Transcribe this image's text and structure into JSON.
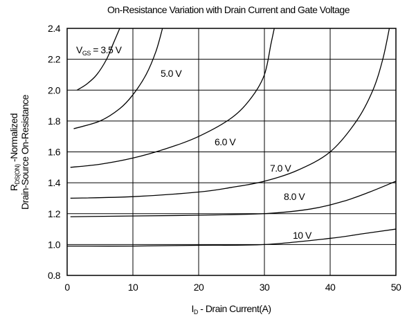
{
  "chart_data": {
    "type": "line",
    "title": "On-Resistance Variation with Drain Current and Gate Voltage",
    "xlabel": {
      "main": "I",
      "sub": "D",
      "rest": " - Drain Current(A)"
    },
    "ylabel": {
      "main": "R",
      "sub": "DS(ON)",
      "rest": " -Normalized",
      "line2": "Drain-Source On-Resistance"
    },
    "legend_prefix": {
      "main": "V",
      "sub": "GS",
      "rest": " = "
    },
    "xlim": [
      0,
      50
    ],
    "xticks": [
      0,
      10,
      20,
      30,
      40,
      50
    ],
    "ylim": [
      0.8,
      2.4
    ],
    "yticks": [
      0.8,
      {
        "value": 1,
        "label": "1.0"
      },
      1.2,
      1.4,
      1.6,
      1.8,
      {
        "value": 2,
        "label": "2.0"
      },
      2.2,
      2.4
    ],
    "grid": true,
    "series": [
      {
        "name": "3.5 V",
        "color": "#000000",
        "x": [
          1.5,
          3,
          4.5,
          6,
          7,
          8
        ],
        "values": [
          2.0,
          2.04,
          2.1,
          2.2,
          2.3,
          2.4
        ]
      },
      {
        "name": "5.0 V",
        "color": "#000000",
        "x": [
          1,
          5,
          8,
          10,
          12,
          13.5,
          14.5
        ],
        "values": [
          1.75,
          1.8,
          1.88,
          1.97,
          2.1,
          2.25,
          2.4
        ]
      },
      {
        "name": "6.0 V",
        "color": "#000000",
        "x": [
          0.5,
          5,
          10,
          15,
          20,
          25,
          28,
          30,
          31,
          31.5
        ],
        "values": [
          1.5,
          1.52,
          1.56,
          1.62,
          1.7,
          1.82,
          1.95,
          2.1,
          2.3,
          2.4
        ]
      },
      {
        "name": "7.0 V",
        "color": "#000000",
        "x": [
          0.5,
          10,
          20,
          25,
          30,
          35,
          40,
          44,
          46.5,
          48,
          49
        ],
        "values": [
          1.3,
          1.31,
          1.34,
          1.37,
          1.41,
          1.48,
          1.6,
          1.8,
          2.0,
          2.2,
          2.4
        ]
      },
      {
        "name": "8.0 V",
        "color": "#000000",
        "x": [
          0.5,
          10,
          20,
          30,
          37,
          42,
          46,
          50
        ],
        "values": [
          1.18,
          1.185,
          1.19,
          1.2,
          1.23,
          1.28,
          1.34,
          1.41
        ]
      },
      {
        "name": "10 V",
        "color": "#000000",
        "x": [
          0,
          10,
          20,
          30,
          40,
          45,
          50
        ],
        "values": [
          0.99,
          0.99,
          0.995,
          1.0,
          1.04,
          1.07,
          1.1
        ]
      }
    ]
  }
}
